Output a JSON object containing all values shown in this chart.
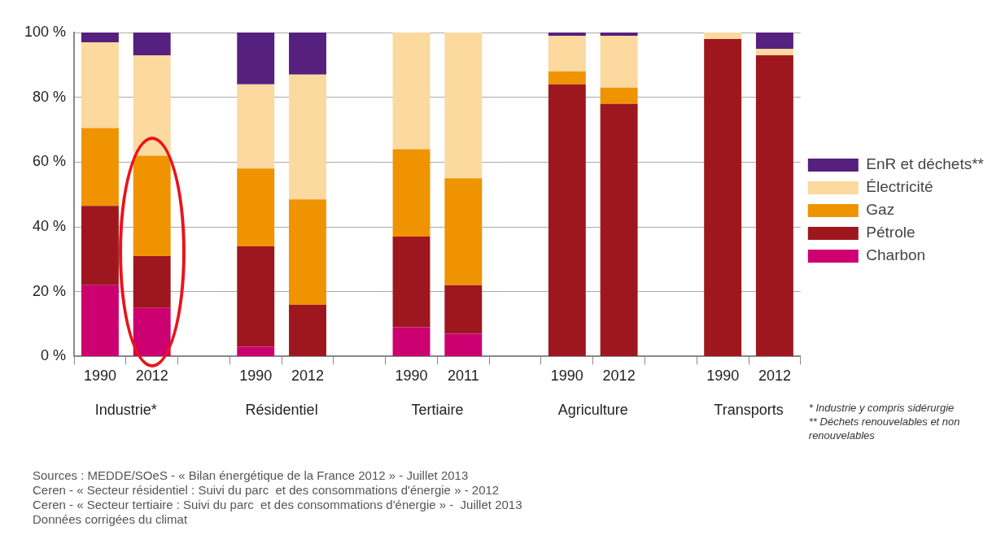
{
  "chart_data": {
    "type": "bar",
    "stacked": true,
    "legend": "right",
    "grid": "y",
    "categories": [
      "1990",
      "2012",
      null,
      "1990",
      "2012",
      null,
      "1990",
      "2011",
      null,
      "1990",
      "2012",
      null,
      "1990",
      "2012"
    ],
    "ylim": [
      0,
      100
    ],
    "yticks": [
      {
        "value": 0,
        "label": "0 %"
      },
      {
        "value": 20,
        "label": "20 %"
      },
      {
        "value": 40,
        "label": "40 %"
      },
      {
        "value": 60,
        "label": "60 %"
      },
      {
        "value": 80,
        "label": "80 %"
      },
      {
        "value": 100,
        "label": "100 %"
      }
    ],
    "series": [
      {
        "name": "Charbon",
        "color": "#cc0070",
        "values": [
          22,
          15,
          null,
          3,
          0,
          null,
          9,
          7,
          null,
          0,
          0,
          null,
          0,
          0
        ]
      },
      {
        "name": "Pétrole",
        "color": "#9e171e",
        "values": [
          24.5,
          16,
          null,
          31,
          16,
          null,
          28,
          15,
          null,
          84,
          78,
          null,
          98,
          93
        ]
      },
      {
        "name": "Gaz",
        "color": "#f09300",
        "values": [
          24,
          31,
          null,
          24,
          32.5,
          null,
          27,
          33,
          null,
          4,
          5,
          null,
          0,
          0
        ]
      },
      {
        "name": "Électricité",
        "color": "#fbd99f",
        "values": [
          26.5,
          31,
          null,
          26,
          38.5,
          null,
          36,
          45,
          null,
          11,
          16,
          null,
          2,
          2
        ]
      },
      {
        "name": "EnR et déchets**",
        "color": "#55207e",
        "values": [
          3,
          7,
          null,
          16,
          13,
          null,
          0,
          0,
          null,
          1,
          1,
          null,
          0,
          5
        ]
      }
    ],
    "annotations": [
      "Industrie*",
      "Résidentiel",
      "Tertiaire",
      "Agriculture",
      "Transports",
      "* Industrie y compris sidérurgie",
      "** Déchets renouvelables et non renouvelables",
      "Sources : MEDDE/SOeS - « Bilan énergétique de la France 2012 » - Juillet 2013",
      "Ceren - « Secteur résidentiel : Suivi du parc  et des consommations d'énergie » - 2012",
      "Ceren - « Secteur tertiaire : Suivi du parc  et des consommations d'énergie » -  Juillet 2013",
      "Données corrigées du climat"
    ]
  }
}
